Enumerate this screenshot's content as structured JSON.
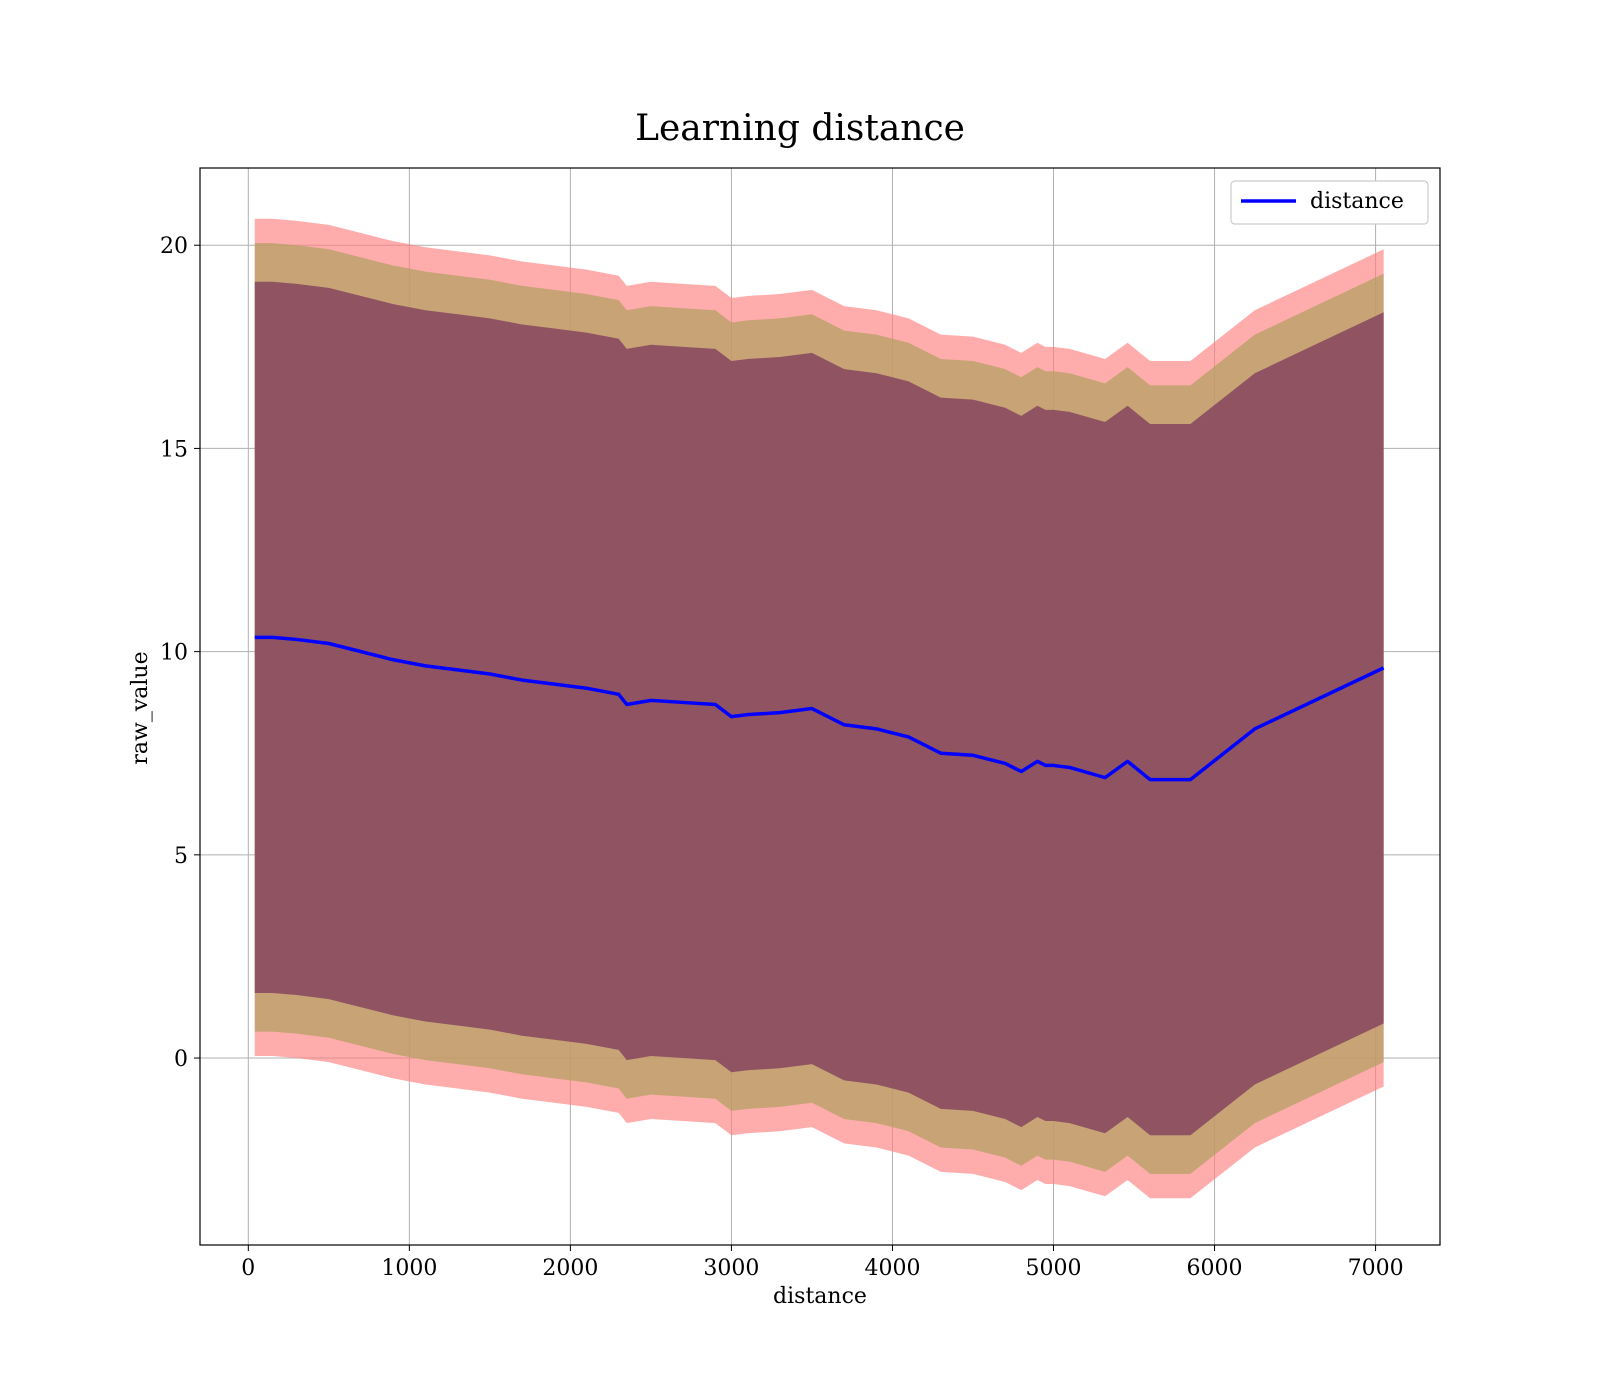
{
  "chart_data": {
    "type": "line",
    "title": "Learning distance",
    "xlabel": "distance",
    "ylabel": "raw_value",
    "xlim": [
      -300,
      7400
    ],
    "ylim": [
      -4.6,
      21.9
    ],
    "xticks": [
      0,
      1000,
      2000,
      3000,
      4000,
      5000,
      6000,
      7000
    ],
    "yticks": [
      0,
      5,
      10,
      15,
      20
    ],
    "grid": true,
    "legend": {
      "position": "top-right",
      "entries": [
        "distance"
      ]
    },
    "colors": {
      "line": "#0000ff",
      "band_outer": "#ff8080",
      "band_middle": "#b4a064",
      "band_inner": "#8a4a60"
    },
    "series": [
      {
        "name": "distance",
        "x": [
          40,
          150,
          300,
          500,
          700,
          900,
          1100,
          1300,
          1500,
          1700,
          1900,
          2100,
          2300,
          2350,
          2500,
          2700,
          2900,
          3000,
          3100,
          3300,
          3500,
          3700,
          3900,
          4100,
          4300,
          4500,
          4700,
          4800,
          4900,
          4950,
          5000,
          5100,
          5320,
          5460,
          5600,
          5850,
          6250,
          7050
        ],
        "y": [
          10.35,
          10.35,
          10.3,
          10.2,
          10.0,
          9.8,
          9.65,
          9.55,
          9.45,
          9.3,
          9.2,
          9.1,
          8.95,
          8.7,
          8.8,
          8.75,
          8.7,
          8.4,
          8.45,
          8.5,
          8.6,
          8.2,
          8.1,
          7.9,
          7.5,
          7.45,
          7.25,
          7.05,
          7.3,
          7.2,
          7.2,
          7.15,
          6.9,
          7.3,
          6.85,
          6.85,
          8.1,
          9.6
        ]
      }
    ],
    "bands": [
      {
        "name": "outer",
        "upper_offset": 10.3,
        "lower_offset": 10.3
      },
      {
        "name": "middle",
        "upper_offset": 9.7,
        "lower_offset": 9.7
      },
      {
        "name": "inner",
        "upper_offset": 8.75,
        "lower_offset": 8.75
      }
    ]
  }
}
